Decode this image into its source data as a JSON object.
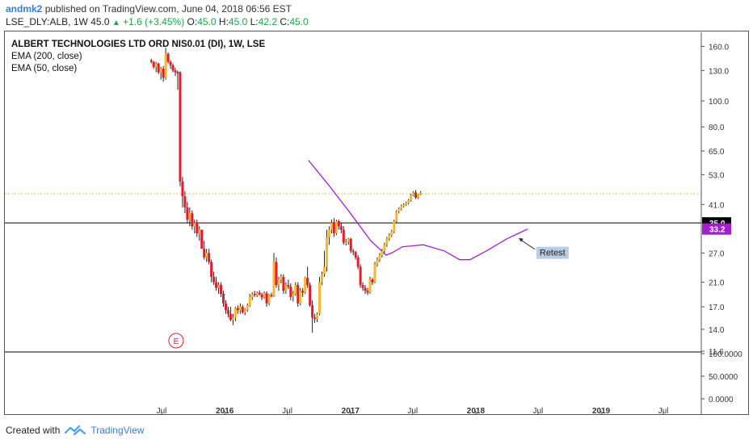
{
  "header": {
    "author": "andmk2",
    "published": " published on TradingView.com, June 04, 2018 06:56 EST",
    "symbol_line": "LSE_DLY:ALB, 1W",
    "open_val": "45.0",
    "change": "+1.6 (+3.45%)",
    "o_label": "O:",
    "o_val": "45.0",
    "h_label": "H:",
    "h_val": "45.0",
    "l_label": "L:",
    "l_val": "42.2",
    "c_label": "C:",
    "c_val": "45.0"
  },
  "legend": {
    "title": "ALBERT TECHNOLOGIES LTD ORD NIS0.01 (DI), 1W, LSE",
    "ema200": "EMA (200, close)",
    "ema50": "EMA (50, close)"
  },
  "footer": {
    "created_with": "Created with",
    "brand": "TradingView"
  },
  "colors": {
    "up": "#f5b731",
    "down": "#e8192c",
    "neutral": "#222222",
    "ema50": "#a020d0",
    "hline": "#000000",
    "dotted": "#f5b731",
    "marker": "#3b4d7e"
  },
  "chart_data": {
    "type": "candlestick",
    "y_scale": "log",
    "ylim": [
      11.6,
      165
    ],
    "y_ticks": [
      "160.0",
      "130.0",
      "100.0",
      "80.0",
      "65.0",
      "53.0",
      "41.0",
      "27.0",
      "21.0",
      "17.0",
      "14.0",
      "11.6"
    ],
    "y_tick_values": [
      160,
      130,
      100,
      80,
      65,
      53,
      41,
      27,
      21,
      17,
      14,
      11.6
    ],
    "x_ticks": [
      "Jul",
      "2016",
      "Jul",
      "2017",
      "Jul",
      "2018",
      "Jul",
      "2019",
      "Jul"
    ],
    "x_tick_dates": [
      "2015-07",
      "2016-01",
      "2016-07",
      "2017-01",
      "2017-07",
      "2018-01",
      "2018-07",
      "2019-01",
      "2019-07"
    ],
    "x_bold_ticks": [
      "2016",
      "2017",
      "2018",
      "2019"
    ],
    "lower_pane_ticks": [
      "100.0000",
      "50.0000",
      "0.0000"
    ],
    "price_labels": [
      {
        "value": 35.0,
        "text": "35.0",
        "style": "black"
      },
      {
        "value": 33.2,
        "text": "33.2",
        "style": "purple"
      }
    ],
    "horizontal_lines": [
      35.0
    ],
    "dotted_line": 45.0,
    "annotation": {
      "text": "Retest",
      "date": "2018-05-15",
      "value": 29.5
    },
    "earnings_marker": {
      "text": "E",
      "date": "2015-07-15"
    },
    "series": [
      {
        "name": "ema50",
        "values": [
          {
            "date": "2016-09",
            "v": 60
          },
          {
            "date": "2016-11",
            "v": 48
          },
          {
            "date": "2017-01",
            "v": 38
          },
          {
            "date": "2017-03",
            "v": 30
          },
          {
            "date": "2017-04-15",
            "v": 26.5
          },
          {
            "date": "2017-05",
            "v": 27
          },
          {
            "date": "2017-06",
            "v": 28.5
          },
          {
            "date": "2017-08",
            "v": 29
          },
          {
            "date": "2017-10",
            "v": 27.5
          },
          {
            "date": "2017-11-15",
            "v": 25.5
          },
          {
            "date": "2017-12-15",
            "v": 25.5
          },
          {
            "date": "2018-02",
            "v": 27.5
          },
          {
            "date": "2018-04",
            "v": 30.5
          },
          {
            "date": "2018-06",
            "v": 33.2
          }
        ]
      }
    ],
    "candles": [
      [
        "2015-06-01",
        142,
        144,
        138,
        140
      ],
      [
        "2015-06-08",
        140,
        141,
        132,
        134
      ],
      [
        "2015-06-15",
        134,
        140,
        128,
        138
      ],
      [
        "2015-06-22",
        138,
        139,
        126,
        128
      ],
      [
        "2015-06-29",
        128,
        134,
        120,
        132
      ],
      [
        "2015-07-06",
        132,
        135,
        118,
        122
      ],
      [
        "2015-07-13",
        122,
        158,
        120,
        150
      ],
      [
        "2015-07-20",
        150,
        152,
        138,
        140
      ],
      [
        "2015-07-27",
        140,
        142,
        132,
        136
      ],
      [
        "2015-08-03",
        136,
        138,
        128,
        130
      ],
      [
        "2015-08-10",
        130,
        133,
        124,
        128
      ],
      [
        "2015-08-17",
        128,
        130,
        110,
        128
      ],
      [
        "2015-08-24",
        128,
        129,
        48,
        50
      ],
      [
        "2015-08-31",
        50,
        52,
        40,
        44
      ],
      [
        "2015-09-07",
        44,
        46,
        38,
        40
      ],
      [
        "2015-09-14",
        40,
        42,
        35,
        36
      ],
      [
        "2015-09-21",
        36,
        40,
        34,
        38
      ],
      [
        "2015-09-28",
        38,
        39,
        33,
        34
      ],
      [
        "2015-10-05",
        34,
        36,
        32,
        35
      ],
      [
        "2015-10-12",
        35,
        36,
        31,
        32
      ],
      [
        "2015-10-19",
        32,
        34,
        30,
        33
      ],
      [
        "2015-10-26",
        33,
        33,
        28,
        28
      ],
      [
        "2015-11-02",
        28,
        30,
        25.5,
        26
      ],
      [
        "2015-11-09",
        26,
        28,
        25,
        27
      ],
      [
        "2015-11-16",
        27,
        28,
        24.5,
        25
      ],
      [
        "2015-11-23",
        25,
        25.5,
        21,
        22
      ],
      [
        "2015-11-30",
        22,
        23,
        20.5,
        21
      ],
      [
        "2015-12-07",
        21,
        22,
        19.5,
        20
      ],
      [
        "2015-12-14",
        20,
        21,
        19,
        20.5
      ],
      [
        "2015-12-21",
        20.5,
        21,
        18.5,
        19
      ],
      [
        "2015-12-28",
        19,
        19.5,
        17,
        17.5
      ],
      [
        "2016-01-04",
        17.5,
        18,
        16,
        16.5
      ],
      [
        "2016-01-11",
        16.5,
        17,
        15.5,
        16
      ],
      [
        "2016-01-18",
        16,
        17,
        15,
        15.2
      ],
      [
        "2016-01-25",
        15.2,
        16,
        14.5,
        15.5
      ],
      [
        "2016-02-01",
        15.5,
        17,
        15,
        16.8
      ],
      [
        "2016-02-08",
        16.8,
        17.2,
        16,
        16.5
      ],
      [
        "2016-02-15",
        16.5,
        17.5,
        16,
        17
      ],
      [
        "2016-02-22",
        17,
        17.3,
        16,
        16.2
      ],
      [
        "2016-02-29",
        16.2,
        16.8,
        15.8,
        16.6
      ],
      [
        "2016-03-07",
        16.6,
        17.5,
        16.3,
        17.2
      ],
      [
        "2016-03-14",
        17.2,
        19,
        17,
        18.5
      ],
      [
        "2016-03-21",
        18.5,
        19.3,
        18,
        19
      ],
      [
        "2016-03-28",
        19,
        19.5,
        18.5,
        18.8
      ],
      [
        "2016-04-04",
        18.8,
        19.4,
        18.5,
        19.2
      ],
      [
        "2016-04-11",
        19.2,
        19.6,
        18.7,
        18.9
      ],
      [
        "2016-04-18",
        18.9,
        19.2,
        18,
        18.4
      ],
      [
        "2016-04-25",
        18.4,
        19.4,
        18.2,
        19.1
      ],
      [
        "2016-05-02",
        19.1,
        19.4,
        17,
        17.5
      ],
      [
        "2016-05-09",
        17.5,
        19,
        17.2,
        18.8
      ],
      [
        "2016-05-16",
        18.8,
        19.2,
        18.4,
        18.6
      ],
      [
        "2016-05-23",
        18.6,
        27,
        18.5,
        25
      ],
      [
        "2016-05-30",
        25,
        26,
        20,
        20.5
      ],
      [
        "2016-06-06",
        20.5,
        22,
        19.5,
        21.5
      ],
      [
        "2016-06-13",
        21.5,
        22.5,
        20.8,
        22
      ],
      [
        "2016-06-20",
        22,
        22.5,
        19,
        19.5
      ],
      [
        "2016-06-27",
        19.5,
        21,
        19,
        20.5
      ],
      [
        "2016-07-04",
        20.5,
        21.5,
        19.8,
        20.2
      ],
      [
        "2016-07-11",
        20.2,
        20.8,
        18,
        18.5
      ],
      [
        "2016-07-18",
        18.5,
        19.5,
        17.8,
        19
      ],
      [
        "2016-07-25",
        19,
        21,
        18.7,
        20.5
      ],
      [
        "2016-08-01",
        20.5,
        21,
        17,
        17.5
      ],
      [
        "2016-08-08",
        17.5,
        20,
        17.2,
        19.5
      ],
      [
        "2016-08-15",
        19.5,
        20,
        18.5,
        19.2
      ],
      [
        "2016-08-22",
        19.2,
        22,
        19,
        21.8
      ],
      [
        "2016-08-29",
        21.8,
        24,
        20,
        20.5
      ],
      [
        "2016-09-05",
        20.5,
        21,
        17,
        17.2
      ],
      [
        "2016-09-12",
        17.2,
        18,
        13.6,
        15.5
      ],
      [
        "2016-09-19",
        15.5,
        16,
        14.8,
        15.3
      ],
      [
        "2016-09-26",
        15.3,
        16.2,
        14.9,
        16
      ],
      [
        "2016-10-03",
        16,
        22,
        15.8,
        21
      ],
      [
        "2016-10-10",
        21,
        23,
        20.5,
        22.5
      ],
      [
        "2016-10-17",
        22.5,
        27.5,
        22,
        24
      ],
      [
        "2016-10-24",
        24,
        33,
        23,
        31
      ],
      [
        "2016-10-31",
        31,
        34,
        29,
        33
      ],
      [
        "2016-11-07",
        33,
        36,
        32,
        35
      ],
      [
        "2016-11-14",
        35,
        36.5,
        31,
        32
      ],
      [
        "2016-11-21",
        32,
        36,
        31.5,
        35.5
      ],
      [
        "2016-11-28",
        35.5,
        36,
        33,
        34
      ],
      [
        "2016-12-05",
        34,
        35,
        32,
        33
      ],
      [
        "2016-12-12",
        33,
        34,
        29,
        29.5
      ],
      [
        "2016-12-19",
        29.5,
        30.5,
        28.8,
        29.8
      ],
      [
        "2016-12-26",
        29.8,
        30.8,
        29,
        30.5
      ],
      [
        "2017-01-02",
        30.5,
        30.8,
        27,
        27.5
      ],
      [
        "2017-01-09",
        27.5,
        28,
        26.5,
        27.2
      ],
      [
        "2017-01-16",
        27.2,
        27.5,
        25.5,
        26
      ],
      [
        "2017-01-23",
        26,
        26.5,
        23.5,
        24
      ],
      [
        "2017-01-30",
        24,
        24.5,
        20,
        20.5
      ],
      [
        "2017-02-06",
        20.5,
        21,
        19.5,
        20
      ],
      [
        "2017-02-13",
        20,
        20.5,
        19,
        19.5
      ],
      [
        "2017-02-20",
        19.5,
        20,
        18.8,
        19.2
      ],
      [
        "2017-02-27",
        19.2,
        22,
        19,
        21.5
      ],
      [
        "2017-03-06",
        21.5,
        21.8,
        20.5,
        21
      ],
      [
        "2017-03-13",
        21,
        25,
        20.8,
        24.5
      ],
      [
        "2017-03-20",
        24.5,
        26,
        24,
        25.5
      ],
      [
        "2017-03-27",
        25.5,
        27,
        25,
        26.5
      ],
      [
        "2017-04-03",
        26.5,
        28,
        26,
        27.5
      ],
      [
        "2017-04-10",
        27.5,
        29.5,
        27,
        29
      ],
      [
        "2017-04-17",
        29,
        31,
        28.5,
        30.5
      ],
      [
        "2017-04-24",
        30.5,
        32,
        30,
        31.5
      ],
      [
        "2017-05-01",
        31.5,
        33,
        31,
        32.5
      ],
      [
        "2017-05-08",
        32.5,
        36,
        32,
        35.5
      ],
      [
        "2017-05-15",
        35.5,
        39,
        35,
        38.5
      ],
      [
        "2017-05-22",
        38.5,
        40,
        38,
        39.5
      ],
      [
        "2017-05-29",
        39.5,
        41,
        39,
        40.5
      ],
      [
        "2017-06-05",
        40.5,
        41.5,
        40,
        41
      ],
      [
        "2017-06-12",
        41,
        42,
        40.5,
        41.5
      ],
      [
        "2017-06-19",
        41.5,
        43,
        41,
        42.5
      ],
      [
        "2017-06-26",
        42.5,
        45,
        42,
        44.5
      ],
      [
        "2017-07-03",
        44.5,
        46,
        44,
        45.5
      ],
      [
        "2017-07-10",
        45.5,
        46.5,
        43,
        43.5
      ],
      [
        "2017-07-17",
        43.5,
        45,
        43,
        44.8
      ],
      [
        "2017-07-24",
        44.8,
        46,
        44.5,
        45.5
      ]
    ]
  }
}
